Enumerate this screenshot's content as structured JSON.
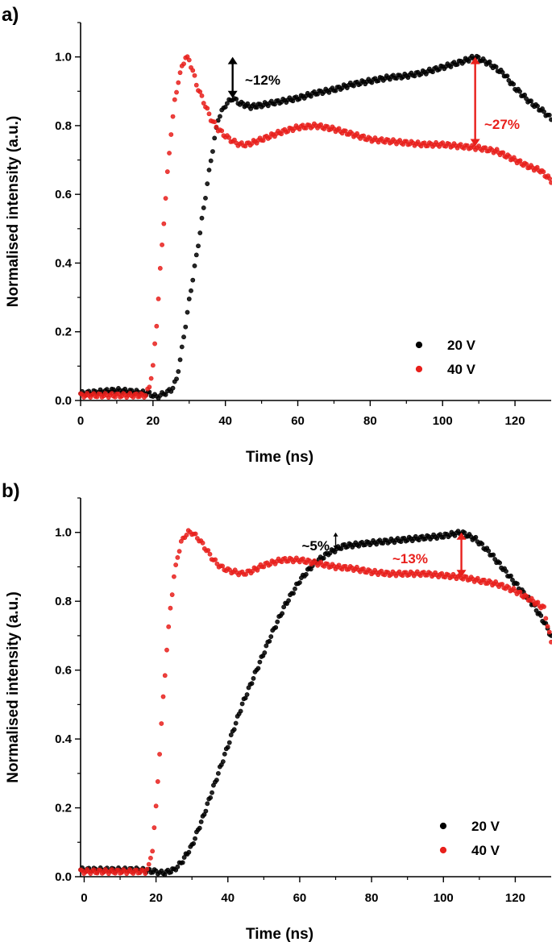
{
  "chart_data": [
    {
      "type": "scatter",
      "panel_label": "a)",
      "xlabel": "Time (ns)",
      "ylabel": "Normalised intensity (a.u.)",
      "xlim": [
        0,
        130
      ],
      "ylim": [
        0,
        1.1
      ],
      "x_ticks": [
        0,
        20,
        40,
        60,
        80,
        100,
        120
      ],
      "y_ticks": [
        "0.0",
        "0.2",
        "0.4",
        "0.6",
        "0.8",
        "1.0"
      ],
      "legend_position": "bottom-right",
      "series": [
        {
          "name": "20 V",
          "color": "#000000",
          "points": [
            [
              0,
              0.02
            ],
            [
              5,
              0.025
            ],
            [
              10,
              0.03
            ],
            [
              15,
              0.025
            ],
            [
              19,
              0.02
            ],
            [
              21,
              0.01
            ],
            [
              23,
              0.02
            ],
            [
              25,
              0.03
            ],
            [
              26.5,
              0.06
            ],
            [
              28,
              0.15
            ],
            [
              30,
              0.29
            ],
            [
              32,
              0.42
            ],
            [
              34,
              0.56
            ],
            [
              36,
              0.7
            ],
            [
              38,
              0.82
            ],
            [
              40,
              0.86
            ],
            [
              42,
              0.88
            ],
            [
              44,
              0.865
            ],
            [
              47,
              0.855
            ],
            [
              50,
              0.86
            ],
            [
              55,
              0.87
            ],
            [
              60,
              0.88
            ],
            [
              65,
              0.895
            ],
            [
              70,
              0.905
            ],
            [
              75,
              0.92
            ],
            [
              80,
              0.93
            ],
            [
              85,
              0.94
            ],
            [
              90,
              0.945
            ],
            [
              95,
              0.955
            ],
            [
              100,
              0.97
            ],
            [
              105,
              0.985
            ],
            [
              109,
              1.0
            ],
            [
              113,
              0.98
            ],
            [
              117,
              0.95
            ],
            [
              120,
              0.91
            ],
            [
              124,
              0.87
            ],
            [
              128,
              0.84
            ],
            [
              130,
              0.82
            ]
          ]
        },
        {
          "name": "40 V",
          "color": "#e8201c",
          "points": [
            [
              0,
              0.015
            ],
            [
              5,
              0.015
            ],
            [
              10,
              0.015
            ],
            [
              15,
              0.015
            ],
            [
              18,
              0.015
            ],
            [
              19,
              0.04
            ],
            [
              20,
              0.1
            ],
            [
              21,
              0.22
            ],
            [
              22,
              0.38
            ],
            [
              23,
              0.52
            ],
            [
              24,
              0.66
            ],
            [
              25,
              0.78
            ],
            [
              26,
              0.87
            ],
            [
              27,
              0.93
            ],
            [
              28,
              0.97
            ],
            [
              29,
              1.0
            ],
            [
              30,
              0.99
            ],
            [
              31,
              0.96
            ],
            [
              32,
              0.92
            ],
            [
              34,
              0.87
            ],
            [
              36,
              0.82
            ],
            [
              38,
              0.79
            ],
            [
              40,
              0.77
            ],
            [
              42,
              0.755
            ],
            [
              44,
              0.745
            ],
            [
              46,
              0.745
            ],
            [
              50,
              0.76
            ],
            [
              55,
              0.78
            ],
            [
              60,
              0.795
            ],
            [
              65,
              0.8
            ],
            [
              70,
              0.79
            ],
            [
              75,
              0.775
            ],
            [
              80,
              0.76
            ],
            [
              85,
              0.755
            ],
            [
              90,
              0.75
            ],
            [
              95,
              0.745
            ],
            [
              100,
              0.745
            ],
            [
              105,
              0.74
            ],
            [
              110,
              0.735
            ],
            [
              115,
              0.725
            ],
            [
              118,
              0.71
            ],
            [
              121,
              0.695
            ],
            [
              124,
              0.68
            ],
            [
              127,
              0.67
            ],
            [
              130,
              0.64
            ]
          ]
        }
      ],
      "annotations": [
        {
          "text": "~12%",
          "color": "#000000",
          "arrow_x": 42,
          "arrow_y": [
            0.88,
            1.0
          ]
        },
        {
          "text": "~27%",
          "color": "#e8201c",
          "arrow_x": 109,
          "arrow_y": [
            0.74,
            1.0
          ]
        }
      ]
    },
    {
      "type": "scatter",
      "panel_label": "b)",
      "xlabel": "Time (ns)",
      "ylabel": "Normalised intensity (a.u.)",
      "xlim": [
        -1,
        130
      ],
      "ylim": [
        0,
        1.1
      ],
      "x_ticks": [
        0,
        20,
        40,
        60,
        80,
        100,
        120
      ],
      "y_ticks": [
        "0.0",
        "0.2",
        "0.4",
        "0.6",
        "0.8",
        "1.0"
      ],
      "legend_position": "bottom-right",
      "series": [
        {
          "name": "20 V",
          "color": "#000000",
          "points": [
            [
              -1,
              0.02
            ],
            [
              5,
              0.02
            ],
            [
              10,
              0.02
            ],
            [
              15,
              0.02
            ],
            [
              20,
              0.015
            ],
            [
              22,
              0.01
            ],
            [
              25,
              0.02
            ],
            [
              27,
              0.04
            ],
            [
              30,
              0.09
            ],
            [
              33,
              0.17
            ],
            [
              36,
              0.26
            ],
            [
              40,
              0.38
            ],
            [
              44,
              0.5
            ],
            [
              48,
              0.6
            ],
            [
              52,
              0.7
            ],
            [
              56,
              0.79
            ],
            [
              60,
              0.86
            ],
            [
              64,
              0.91
            ],
            [
              68,
              0.94
            ],
            [
              72,
              0.96
            ],
            [
              76,
              0.965
            ],
            [
              80,
              0.97
            ],
            [
              85,
              0.975
            ],
            [
              90,
              0.98
            ],
            [
              95,
              0.985
            ],
            [
              100,
              0.99
            ],
            [
              105,
              1.0
            ],
            [
              109,
              0.98
            ],
            [
              113,
              0.94
            ],
            [
              117,
              0.89
            ],
            [
              121,
              0.84
            ],
            [
              125,
              0.79
            ],
            [
              128,
              0.74
            ],
            [
              130,
              0.7
            ]
          ]
        },
        {
          "name": "40 V",
          "color": "#e8201c",
          "points": [
            [
              -1,
              0.015
            ],
            [
              5,
              0.015
            ],
            [
              10,
              0.015
            ],
            [
              15,
              0.015
            ],
            [
              17,
              0.015
            ],
            [
              18,
              0.03
            ],
            [
              19,
              0.08
            ],
            [
              20,
              0.2
            ],
            [
              21,
              0.36
            ],
            [
              22,
              0.52
            ],
            [
              23,
              0.66
            ],
            [
              24,
              0.78
            ],
            [
              25,
              0.87
            ],
            [
              26,
              0.93
            ],
            [
              27,
              0.97
            ],
            [
              28,
              0.99
            ],
            [
              29,
              1.0
            ],
            [
              30,
              1.0
            ],
            [
              32,
              0.98
            ],
            [
              34,
              0.95
            ],
            [
              36,
              0.92
            ],
            [
              38,
              0.9
            ],
            [
              40,
              0.89
            ],
            [
              42,
              0.885
            ],
            [
              44,
              0.88
            ],
            [
              46,
              0.885
            ],
            [
              50,
              0.905
            ],
            [
              55,
              0.92
            ],
            [
              60,
              0.92
            ],
            [
              65,
              0.91
            ],
            [
              70,
              0.9
            ],
            [
              75,
              0.895
            ],
            [
              80,
              0.885
            ],
            [
              85,
              0.88
            ],
            [
              90,
              0.88
            ],
            [
              95,
              0.88
            ],
            [
              100,
              0.875
            ],
            [
              105,
              0.87
            ],
            [
              110,
              0.86
            ],
            [
              115,
              0.85
            ],
            [
              120,
              0.83
            ],
            [
              125,
              0.8
            ],
            [
              128,
              0.78
            ],
            [
              130,
              0.68
            ]
          ]
        }
      ],
      "annotations": [
        {
          "text": "~5%",
          "color": "#000000",
          "arrow_x": 70,
          "arrow_y": [
            0.95,
            1.0
          ]
        },
        {
          "text": "~13%",
          "color": "#e8201c",
          "arrow_x": 105,
          "arrow_y": [
            0.87,
            1.0
          ]
        }
      ]
    }
  ]
}
